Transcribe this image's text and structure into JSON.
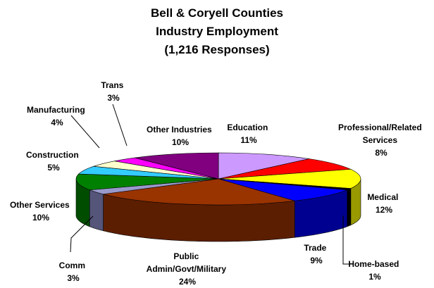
{
  "chart_data": {
    "type": "pie",
    "title_lines": [
      "Bell & Coryell Counties",
      "Industry Employment",
      "(1,216 Responses)"
    ],
    "slices": [
      {
        "label": "Education",
        "value": 11,
        "pct_label": "11%",
        "color": "#cc99ff",
        "side": "#8c64b4"
      },
      {
        "label": "Professional/Related Services",
        "value": 8,
        "pct_label": "8%",
        "color": "#ff0000",
        "side": "#a00000"
      },
      {
        "label": "Medical",
        "value": 12,
        "pct_label": "12%",
        "color": "#ffff00",
        "side": "#999900"
      },
      {
        "label": "Home-based",
        "value": 1,
        "pct_label": "1%",
        "color": "#000000",
        "side": "#000000"
      },
      {
        "label": "Trade",
        "value": 9,
        "pct_label": "9%",
        "color": "#0000ff",
        "side": "#000090"
      },
      {
        "label": "Public Admin/Govt/Military",
        "value": 24,
        "pct_label": "24%",
        "color": "#993300",
        "side": "#5c1e00"
      },
      {
        "label": "Comm",
        "value": 3,
        "pct_label": "3%",
        "color": "#9999cc",
        "side": "#55557a"
      },
      {
        "label": "Other Services",
        "value": 10,
        "pct_label": "10%",
        "color": "#008000",
        "side": "#004d00"
      },
      {
        "label": "Construction",
        "value": 5,
        "pct_label": "5%",
        "color": "#33ccff",
        "side": "#1f7a99"
      },
      {
        "label": "Manufacturing",
        "value": 4,
        "pct_label": "4%",
        "color": "#ffffcc",
        "side": "#b3b38f"
      },
      {
        "label": "Trans",
        "value": 3,
        "pct_label": "3%",
        "color": "#ff00ff",
        "side": "#990099"
      },
      {
        "label": "Other Industries",
        "value": 10,
        "pct_label": "10%",
        "color": "#800080",
        "side": "#4d004d"
      }
    ]
  }
}
